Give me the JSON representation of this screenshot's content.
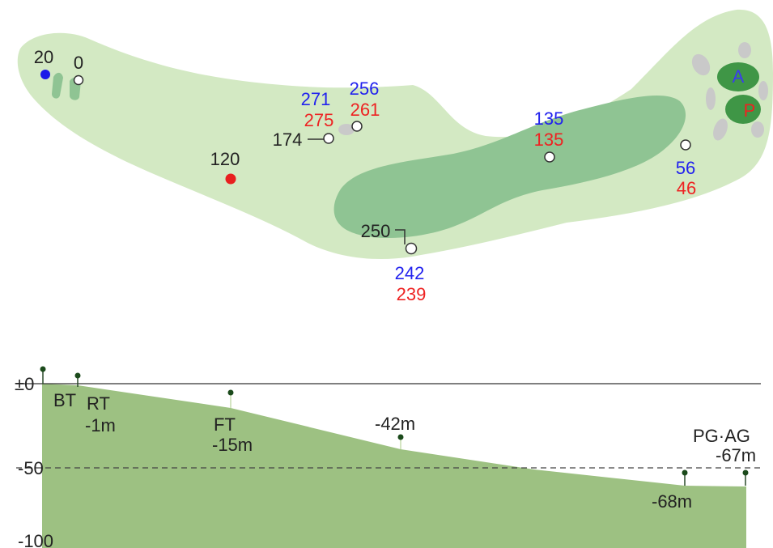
{
  "hole_map": {
    "tee_labels": {
      "back_tee": "20",
      "regular_tee": "0"
    },
    "hazard_point": "120",
    "marker_174": "174",
    "marker_250": "250",
    "yardages": [
      {
        "id": "p271",
        "blue": "271",
        "red": "275"
      },
      {
        "id": "p256",
        "blue": "256",
        "red": "261"
      },
      {
        "id": "p135",
        "blue": "135",
        "red": "135"
      },
      {
        "id": "p56",
        "blue": "56",
        "red": "46"
      },
      {
        "id": "p242",
        "blue": "242",
        "red": "239"
      }
    ],
    "greens": {
      "a": "A",
      "p": "P"
    },
    "colors": {
      "rough": "#d3e9c3",
      "fairway": "#8fc493",
      "green": "#3f9646",
      "bunker": "#c9c9c9",
      "blue": "#2222ee",
      "red": "#ee2222"
    }
  },
  "elevation": {
    "axis": {
      "zero": "±0",
      "minus50": "-50",
      "minus100": "-100"
    },
    "labels": {
      "bt": "BT",
      "rt": "RT",
      "rt_val": "-1m",
      "ft": "FT",
      "ft_val": "-15m",
      "mid_val": "-42m",
      "low_val": "-68m",
      "pg_ag": "PG·AG",
      "pg_val": "-67m"
    },
    "colors": {
      "fill": "#9dc182"
    }
  }
}
